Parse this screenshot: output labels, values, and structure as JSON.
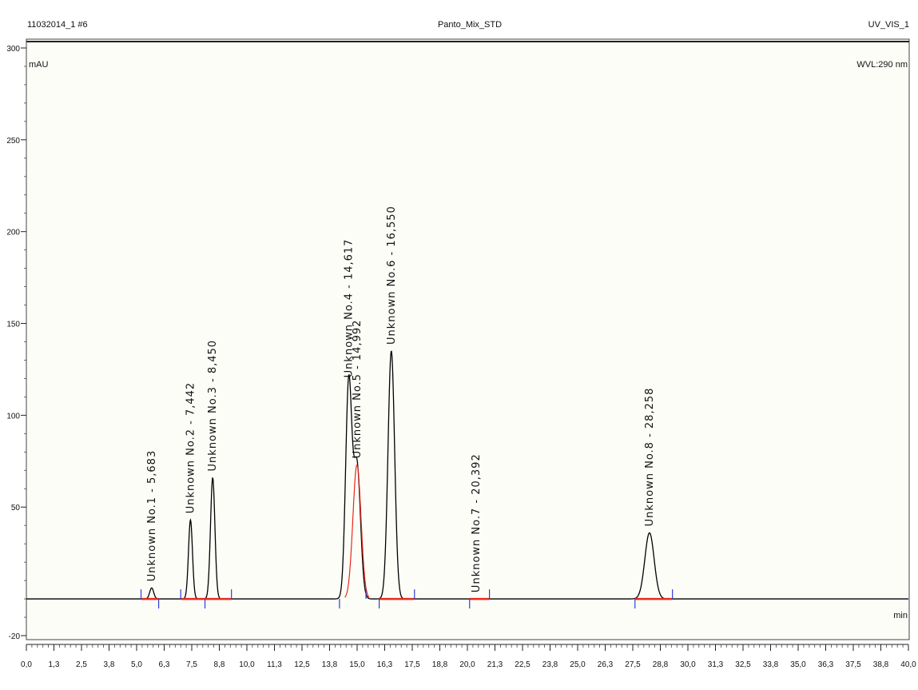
{
  "header": {
    "left": "11032014_1 #6",
    "center": "Panto_Mix_STD",
    "right": "UV_VIS_1"
  },
  "y_unit": "mAU",
  "wavelength": "WVL:290 nm",
  "x_unit": "min",
  "chart_data": {
    "type": "line",
    "xlim": [
      0,
      40
    ],
    "ylim": [
      -20,
      300
    ],
    "x_ticks": [
      "0,0",
      "1,3",
      "2,5",
      "3,8",
      "5,0",
      "6,3",
      "7,5",
      "8,8",
      "10,0",
      "11,3",
      "12,5",
      "13,8",
      "15,0",
      "16,3",
      "17,5",
      "18,8",
      "20,0",
      "21,3",
      "22,5",
      "23,8",
      "25,0",
      "26,3",
      "27,5",
      "28,8",
      "30,0",
      "31,3",
      "32,5",
      "33,8",
      "35,0",
      "36,3",
      "37,5",
      "38,8",
      "40,0"
    ],
    "y_ticks": [
      300,
      250,
      200,
      150,
      100,
      50,
      -20
    ],
    "baseline": 0,
    "peaks": [
      {
        "label": "Unknown No.1 - 5,683",
        "rt": 5.683,
        "height": 6,
        "width": 0.09
      },
      {
        "label": "Unknown No.2 - 7,442",
        "rt": 7.442,
        "height": 43,
        "width": 0.09
      },
      {
        "label": "Unknown No.3 - 8,450",
        "rt": 8.45,
        "height": 66,
        "width": 0.1
      },
      {
        "label": "Unknown No.4 - 14,617",
        "rt": 14.617,
        "height": 117,
        "width": 0.14
      },
      {
        "label": "Unknown No.5 - 14,992",
        "rt": 14.992,
        "height": 73,
        "width": 0.16
      },
      {
        "label": "Unknown No.6 - 16,550",
        "rt": 16.55,
        "height": 135,
        "width": 0.15
      },
      {
        "label": "Unknown No.7 - 20,392",
        "rt": 20.392,
        "height": 0,
        "width": 0.1
      },
      {
        "label": "Unknown No.8 - 28,258",
        "rt": 28.258,
        "height": 36,
        "width": 0.21
      }
    ],
    "integration_segments": [
      {
        "start": 5.2,
        "end": 6.0
      },
      {
        "start": 7.0,
        "end": 9.3
      },
      {
        "start": 16.0,
        "end": 17.6
      },
      {
        "start": 20.1,
        "end": 21.0
      },
      {
        "start": 27.6,
        "end": 29.3
      }
    ],
    "integration_markers": [
      5.2,
      6.0,
      7.0,
      8.1,
      9.3,
      14.2,
      15.4,
      16.0,
      17.6,
      20.1,
      21.0,
      27.6,
      29.3
    ],
    "colors": {
      "trace": "#000000",
      "baseline": "#e8281c",
      "marker": "#2b3fd6",
      "frame": "#444444"
    }
  }
}
